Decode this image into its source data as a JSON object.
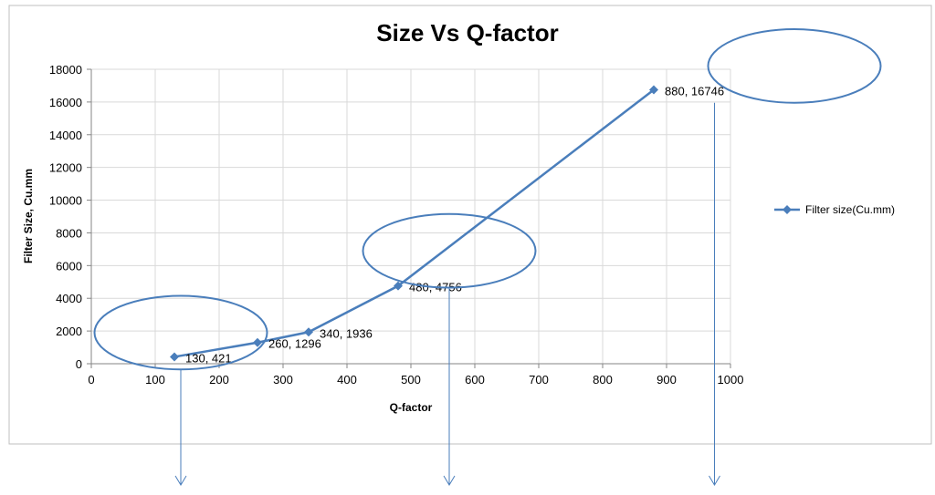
{
  "chart_data": {
    "type": "scatter",
    "title": "Size Vs Q-factor",
    "xlabel": "Q-factor",
    "ylabel": "Filter Size, Cu.mm",
    "xlim": [
      0,
      1000
    ],
    "ylim": [
      0,
      18000
    ],
    "x_ticks": [
      "0",
      "100",
      "200",
      "300",
      "400",
      "500",
      "600",
      "700",
      "800",
      "900",
      "1000"
    ],
    "y_ticks": [
      "0",
      "2000",
      "4000",
      "6000",
      "8000",
      "10000",
      "12000",
      "14000",
      "16000",
      "18000"
    ],
    "grid": true,
    "legend_position": "right",
    "series": [
      {
        "name": "Filter size(Cu.mm)",
        "color": "#4a7ebb",
        "marker": "diamond",
        "x": [
          130,
          260,
          340,
          480,
          880
        ],
        "y": [
          421,
          1296,
          1936,
          4756,
          16746
        ],
        "labels": [
          "130, 421",
          "260, 1296",
          "340, 1936",
          "480, 4756",
          "880, 16746"
        ]
      }
    ],
    "annotations": {
      "ellipse_color": "#4a7ebb",
      "ellipse_centers": [
        [
          140,
          1900
        ],
        [
          560,
          6900
        ],
        [
          1100,
          18200
        ]
      ],
      "arrow_x": [
        140,
        560,
        975
      ]
    }
  }
}
